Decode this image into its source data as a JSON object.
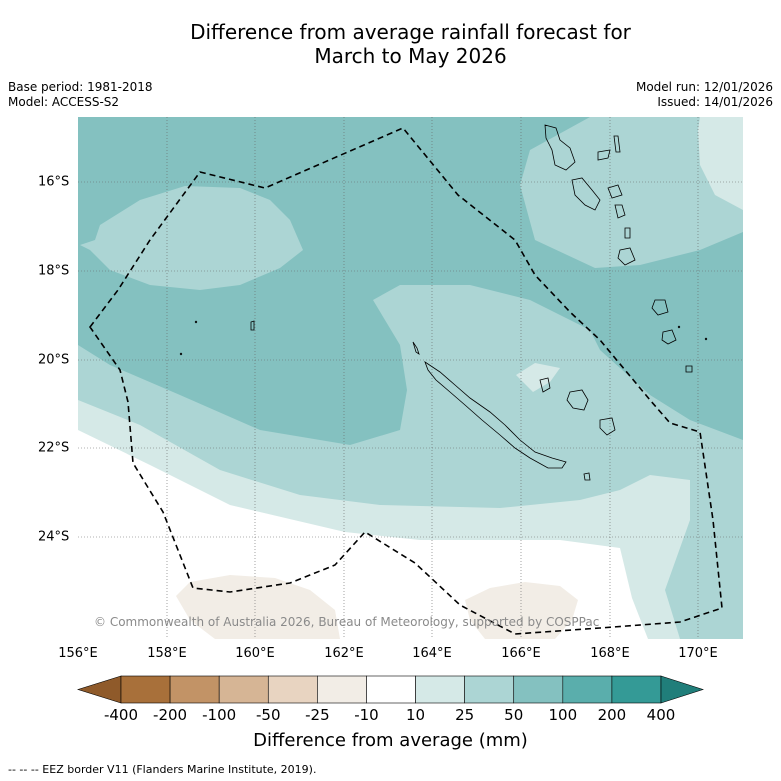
{
  "header": {
    "title_line1": "Difference from average rainfall forecast for",
    "title_line2": "March to May 2026",
    "base_period": "Base period: 1981-2018",
    "model": "Model: ACCESS-S2",
    "model_run": "Model run: 12/01/2026",
    "issued": "Issued: 14/01/2026"
  },
  "map": {
    "lat_ticks": [
      "16°S",
      "18°S",
      "20°S",
      "22°S",
      "24°S"
    ],
    "lon_ticks": [
      "156°E",
      "158°E",
      "160°E",
      "162°E",
      "164°E",
      "166°E",
      "168°E",
      "170°E"
    ],
    "copyright": "© Commonwealth of Australia 2026, Bureau of Meteorology, supported by COSPPac"
  },
  "colorbar": {
    "labels": [
      "-400",
      "-200",
      "-100",
      "-50",
      "-25",
      "-10",
      "10",
      "25",
      "50",
      "100",
      "200",
      "400"
    ],
    "colors": [
      "#a8703a",
      "#c29366",
      "#d6b595",
      "#e8d4c1",
      "#f2ede6",
      "#ffffff",
      "#d5e9e7",
      "#acd5d4",
      "#84c1c0",
      "#5aaeac",
      "#349a96"
    ],
    "low_extend_color": "#8f5a2a",
    "high_extend_color": "#207e7a",
    "title": "Difference from average (mm)"
  },
  "footnote": "--  --  -- EEZ border V11 (Flanders Marine Institute, 2019).",
  "colors": {
    "grid": "#666666",
    "land": "#000000",
    "eez": "#000000"
  }
}
